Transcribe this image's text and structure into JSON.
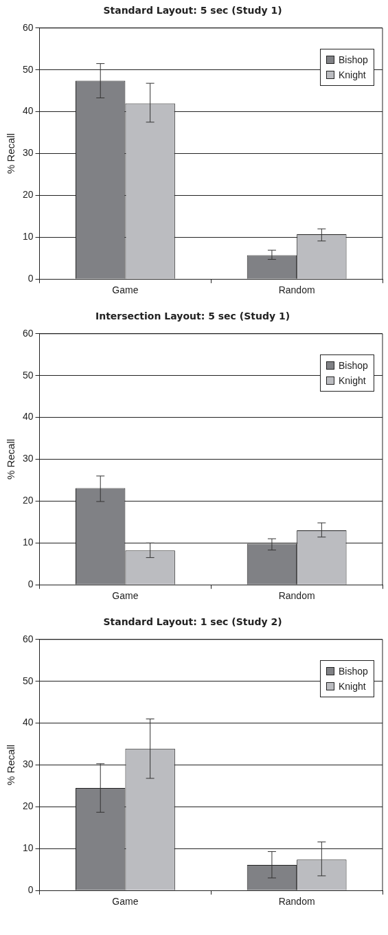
{
  "chart_data": [
    {
      "type": "bar",
      "title": "Standard Layout: 5 sec (Study 1)",
      "ylabel": "% Recall",
      "categories": [
        "Game",
        "Random"
      ],
      "ylim": [
        0,
        60
      ],
      "yticks": [
        0,
        10,
        20,
        30,
        40,
        50,
        60
      ],
      "grid": "y",
      "legend": "top right",
      "series": [
        {
          "name": "Bishop",
          "color": "#808185",
          "values": [
            47.4,
            5.7
          ],
          "errors": [
            [
              43.3,
              51.5
            ],
            [
              4.7,
              6.9
            ]
          ]
        },
        {
          "name": "Knight",
          "color": "#bbbcc0",
          "values": [
            42.0,
            10.7
          ],
          "errors": [
            [
              37.5,
              46.8
            ],
            [
              9.1,
              12.0
            ]
          ]
        }
      ]
    },
    {
      "type": "bar",
      "title": "Intersection Layout: 5 sec (Study 1)",
      "ylabel": "% Recall",
      "categories": [
        "Game",
        "Random"
      ],
      "ylim": [
        0,
        60
      ],
      "yticks": [
        0,
        10,
        20,
        30,
        40,
        50,
        60
      ],
      "grid": "y",
      "legend": "top right",
      "series": [
        {
          "name": "Bishop",
          "color": "#808185",
          "values": [
            23.1,
            9.8
          ],
          "errors": [
            [
              19.9,
              26.0
            ],
            [
              8.3,
              11.0
            ]
          ]
        },
        {
          "name": "Knight",
          "color": "#bbbcc0",
          "values": [
            8.2,
            13.0
          ],
          "errors": [
            [
              6.5,
              10.0
            ],
            [
              11.4,
              14.8
            ]
          ]
        }
      ]
    },
    {
      "type": "bar",
      "title": "Standard Layout: 1 sec (Study 2)",
      "ylabel": "% Recall",
      "categories": [
        "Game",
        "Random"
      ],
      "ylim": [
        0,
        60
      ],
      "yticks": [
        0,
        10,
        20,
        30,
        40,
        50,
        60
      ],
      "grid": "y",
      "legend": "top right",
      "series": [
        {
          "name": "Bishop",
          "color": "#808185",
          "values": [
            24.5,
            6.1
          ],
          "errors": [
            [
              18.7,
              30.3
            ],
            [
              3.0,
              9.3
            ]
          ]
        },
        {
          "name": "Knight",
          "color": "#bbbcc0",
          "values": [
            33.9,
            7.4
          ],
          "errors": [
            [
              26.8,
              41.0
            ],
            [
              3.5,
              11.6
            ]
          ]
        }
      ]
    }
  ]
}
